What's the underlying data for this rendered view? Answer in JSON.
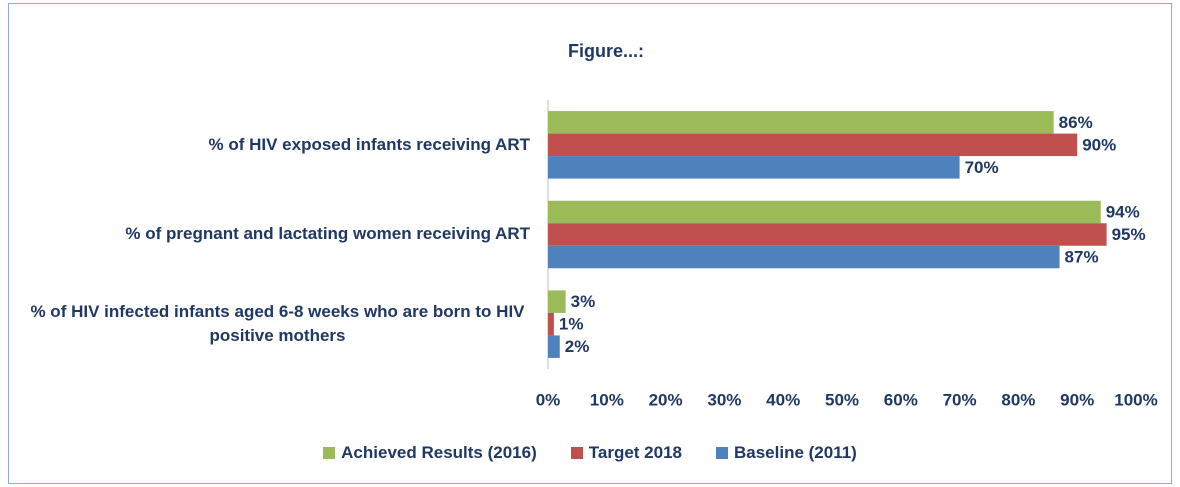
{
  "chart_data": {
    "type": "bar",
    "orientation": "horizontal",
    "title": "Figure...:",
    "categories": [
      "% of HIV exposed infants receiving ART",
      "% of pregnant and lactating women receiving ART",
      "% of HIV infected infants aged 6-8 weeks who are born to HIV positive mothers"
    ],
    "series": [
      {
        "name": "Achieved Results (2016)",
        "color": "#9bbb59",
        "values": [
          86,
          94,
          3
        ],
        "value_labels": [
          "86%",
          "94%",
          "3%"
        ]
      },
      {
        "name": "Target 2018",
        "color": "#c0504d",
        "values": [
          90,
          95,
          1
        ],
        "value_labels": [
          "90%",
          "95%",
          "1%"
        ]
      },
      {
        "name": "Baseline (2011)",
        "color": "#4f81bd",
        "values": [
          70,
          87,
          2
        ],
        "value_labels": [
          "70%",
          "87%",
          "2%"
        ]
      }
    ],
    "xlim": [
      0,
      100
    ],
    "xticks": [
      {
        "value": 0,
        "label": "0%"
      },
      {
        "value": 10,
        "label": "10%"
      },
      {
        "value": 20,
        "label": "20%"
      },
      {
        "value": 30,
        "label": "30%"
      },
      {
        "value": 40,
        "label": "40%"
      },
      {
        "value": 50,
        "label": "50%"
      },
      {
        "value": 60,
        "label": "60%"
      },
      {
        "value": 70,
        "label": "70%"
      },
      {
        "value": 80,
        "label": "80%"
      },
      {
        "value": 90,
        "label": "90%"
      },
      {
        "value": 100,
        "label": "100%"
      }
    ],
    "legend": "bottom"
  }
}
